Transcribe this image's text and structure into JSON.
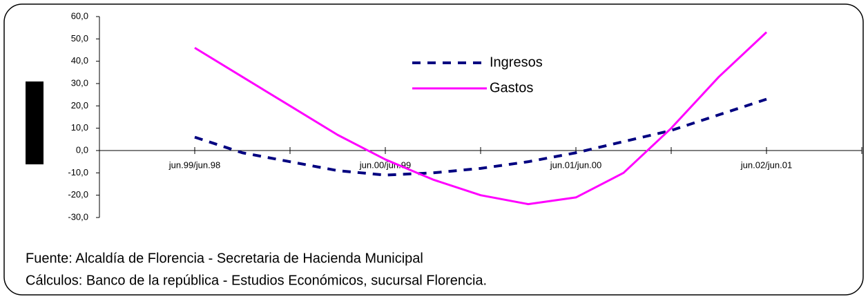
{
  "chart_data": {
    "type": "line",
    "categories": [
      "jun.99/jun.98",
      null,
      null,
      null,
      "jun.00/jun.99",
      null,
      null,
      null,
      "jun.01/jun.00",
      null,
      null,
      null,
      "jun.02/jun.01"
    ],
    "series": [
      {
        "name": "Ingresos",
        "color": "#000080",
        "style": "dashed",
        "values": [
          6,
          -1,
          -5,
          -9,
          -11,
          -10,
          -8,
          -5,
          -1,
          4,
          9,
          16,
          23
        ]
      },
      {
        "name": "Gastos",
        "color": "#ff00ff",
        "style": "solid",
        "values": [
          46,
          33,
          20,
          7,
          -4,
          -13,
          -20,
          -24,
          -21,
          -10,
          10,
          33,
          53
        ]
      }
    ],
    "ylim": [
      -30,
      60
    ],
    "yticks": [
      {
        "value": 60,
        "label": "60,0"
      },
      {
        "value": 50,
        "label": "50,0"
      },
      {
        "value": 40,
        "label": "40,0"
      },
      {
        "value": 30,
        "label": "30,0"
      },
      {
        "value": 20,
        "label": "20,0"
      },
      {
        "value": 10,
        "label": "10,0"
      },
      {
        "value": 0,
        "label": "0,0"
      },
      {
        "value": -10,
        "label": "-10,0"
      },
      {
        "value": -20,
        "label": "-20,0"
      },
      {
        "value": -30,
        "label": "-30,0"
      }
    ],
    "grid": false,
    "legend": "top-center",
    "annotations": [
      "Fuente: Alcaldía de Florencia - Secretaria de Hacienda Municipal",
      "Cálculos:  Banco de la república - Estudios Económicos, sucursal Florencia."
    ]
  }
}
